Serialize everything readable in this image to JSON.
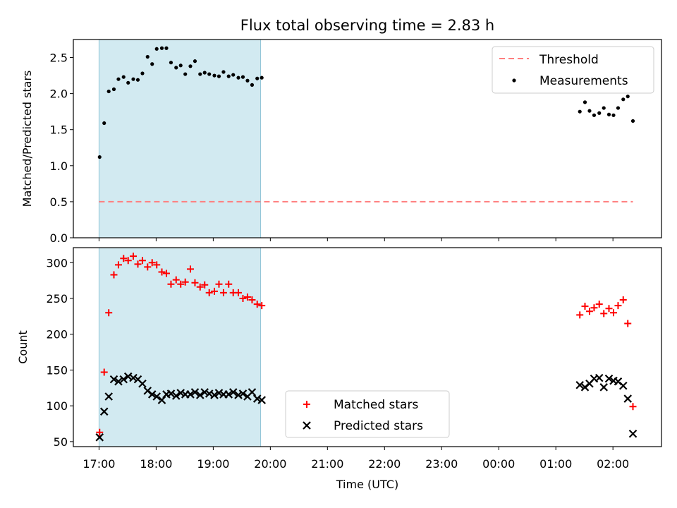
{
  "title": "Flux total observing time = 2.83 h",
  "chart_data": [
    {
      "type": "scatter",
      "panel": "top",
      "title": "Flux total observing time = 2.83 h",
      "xlabel": "",
      "ylabel": "Matched/Predicted stars",
      "ylim": [
        0,
        2.75
      ],
      "yticks": [
        0.0,
        0.5,
        1.0,
        1.5,
        2.0,
        2.5
      ],
      "ytick_labels": [
        "0.0",
        "0.5",
        "1.0",
        "1.5",
        "2.0",
        "2.5"
      ],
      "xlim": [
        16.55,
        26.85
      ],
      "legend_position": "top-right",
      "shaded_interval": {
        "x": [
          17.0,
          19.83
        ],
        "color": "#add8e6"
      },
      "threshold": {
        "name": "Threshold",
        "value": 0.5,
        "x": [
          17.0,
          26.35
        ],
        "color": "#ff7f7f"
      },
      "series": [
        {
          "name": "Measurements",
          "color": "#000000",
          "marker": "dot",
          "x": [
            17.01,
            17.09,
            17.17,
            17.26,
            17.34,
            17.43,
            17.51,
            17.6,
            17.68,
            17.76,
            17.85,
            17.93,
            18.01,
            18.1,
            18.18,
            18.26,
            18.35,
            18.43,
            18.51,
            18.6,
            18.68,
            18.77,
            18.85,
            18.93,
            19.02,
            19.1,
            19.18,
            19.27,
            19.35,
            19.44,
            19.52,
            19.6,
            19.68,
            19.77,
            19.85,
            25.42,
            25.51,
            25.59,
            25.67,
            25.76,
            25.84,
            25.93,
            26.01,
            26.09,
            26.18,
            26.26,
            26.35
          ],
          "y": [
            1.12,
            1.59,
            2.03,
            2.06,
            2.2,
            2.23,
            2.15,
            2.2,
            2.19,
            2.28,
            2.51,
            2.41,
            2.62,
            2.63,
            2.63,
            2.43,
            2.36,
            2.39,
            2.27,
            2.38,
            2.45,
            2.27,
            2.29,
            2.27,
            2.25,
            2.24,
            2.3,
            2.24,
            2.26,
            2.22,
            2.23,
            2.18,
            2.12,
            2.21,
            2.22,
            1.75,
            1.88,
            1.76,
            1.7,
            1.73,
            1.8,
            1.71,
            1.7,
            1.8,
            1.92,
            1.96,
            1.62
          ]
        }
      ]
    },
    {
      "type": "scatter",
      "panel": "bottom",
      "xlabel": "Time (UTC)",
      "ylabel": "Count",
      "ylim": [
        43,
        321
      ],
      "yticks": [
        50,
        100,
        150,
        200,
        250,
        300
      ],
      "ytick_labels": [
        "50",
        "100",
        "150",
        "200",
        "250",
        "300"
      ],
      "xlim": [
        16.55,
        26.85
      ],
      "xticks": [
        17,
        18,
        19,
        20,
        21,
        22,
        23,
        24,
        25,
        26
      ],
      "xtick_labels": [
        "17:00",
        "18:00",
        "19:00",
        "20:00",
        "21:00",
        "22:00",
        "23:00",
        "00:00",
        "01:00",
        "02:00"
      ],
      "legend_position": "bottom-center",
      "shaded_interval": {
        "x": [
          17.0,
          19.83
        ],
        "color": "#add8e6"
      },
      "series": [
        {
          "name": "Matched stars",
          "color": "#ff0000",
          "marker": "plus",
          "x": [
            17.01,
            17.09,
            17.17,
            17.26,
            17.34,
            17.43,
            17.51,
            17.6,
            17.68,
            17.76,
            17.85,
            17.93,
            18.01,
            18.1,
            18.18,
            18.26,
            18.35,
            18.43,
            18.51,
            18.6,
            18.68,
            18.77,
            18.85,
            18.93,
            19.02,
            19.1,
            19.18,
            19.27,
            19.35,
            19.44,
            19.52,
            19.6,
            19.68,
            19.77,
            19.85,
            25.42,
            25.51,
            25.59,
            25.67,
            25.76,
            25.84,
            25.93,
            26.01,
            26.09,
            26.18,
            26.26,
            26.35
          ],
          "y": [
            63,
            147,
            230,
            283,
            297,
            306,
            303,
            309,
            298,
            303,
            294,
            300,
            297,
            287,
            285,
            270,
            276,
            270,
            273,
            291,
            272,
            266,
            269,
            258,
            260,
            270,
            258,
            270,
            258,
            258,
            250,
            252,
            248,
            242,
            240,
            227,
            239,
            232,
            237,
            242,
            229,
            236,
            230,
            240,
            248,
            215,
            99
          ]
        },
        {
          "name": "Predicted stars",
          "color": "#000000",
          "marker": "x",
          "x": [
            17.01,
            17.09,
            17.17,
            17.26,
            17.34,
            17.43,
            17.51,
            17.6,
            17.68,
            17.76,
            17.85,
            17.93,
            18.01,
            18.1,
            18.18,
            18.26,
            18.35,
            18.43,
            18.51,
            18.6,
            18.68,
            18.77,
            18.85,
            18.93,
            19.02,
            19.1,
            19.18,
            19.27,
            19.35,
            19.44,
            19.52,
            19.6,
            19.68,
            19.77,
            19.85,
            25.42,
            25.51,
            25.59,
            25.67,
            25.76,
            25.84,
            25.93,
            26.01,
            26.09,
            26.18,
            26.26,
            26.35
          ],
          "y": [
            56,
            92,
            113,
            137,
            134,
            137,
            141,
            139,
            137,
            131,
            121,
            116,
            113,
            108,
            116,
            117,
            114,
            118,
            116,
            116,
            119,
            115,
            119,
            117,
            115,
            118,
            116,
            116,
            119,
            115,
            117,
            113,
            119,
            110,
            108,
            129,
            126,
            131,
            138,
            139,
            126,
            138,
            135,
            134,
            128,
            110,
            61
          ]
        }
      ]
    }
  ]
}
